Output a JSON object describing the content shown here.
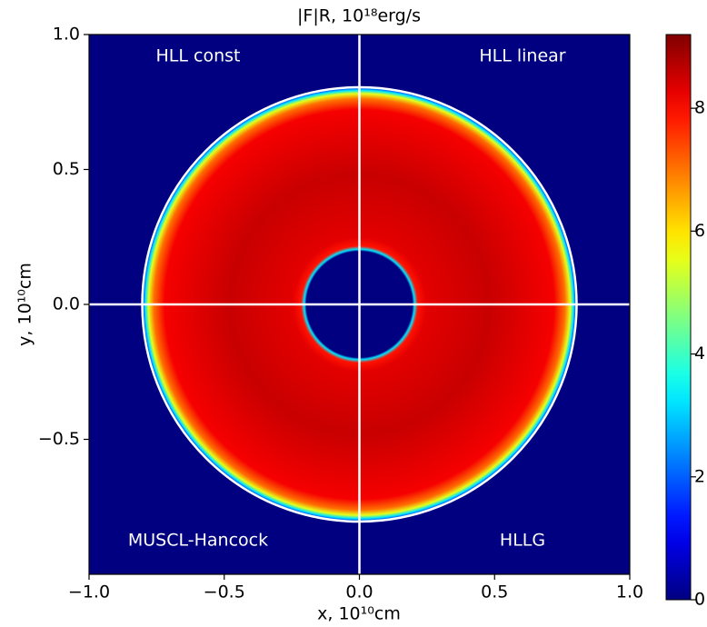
{
  "chart_data": {
    "type": "heatmap",
    "title": "|F|R,  10¹⁸erg/s",
    "x_label": "x,  10¹⁰cm",
    "y_label": "y,  10¹⁰cm",
    "annotations": [
      "HLL const",
      "HLL linear",
      "MUSCL-Hancock",
      "HLLG"
    ],
    "xlim": [
      -1,
      1
    ],
    "ylim": [
      -1,
      1
    ],
    "xticks": [
      {
        "value": -1,
        "label": "−1.0"
      },
      {
        "value": -0.5,
        "label": "−0.5"
      },
      {
        "value": 0,
        "label": "0.0"
      },
      {
        "value": 0.5,
        "label": "0.5"
      },
      {
        "value": 1,
        "label": "1.0"
      }
    ],
    "yticks": [
      {
        "value": -0.5,
        "label": "−0.5"
      },
      {
        "value": 0,
        "label": "0.0"
      },
      {
        "value": 0.5,
        "label": "0.5"
      },
      {
        "value": 1,
        "label": "1.0"
      }
    ],
    "colormap": "jet",
    "clim": [
      0,
      9.2
    ],
    "cticks": [
      0,
      2,
      4,
      6,
      8
    ],
    "field": {
      "r_inner": 0.2,
      "r_outer": 0.8,
      "value": 8.3
    }
  }
}
